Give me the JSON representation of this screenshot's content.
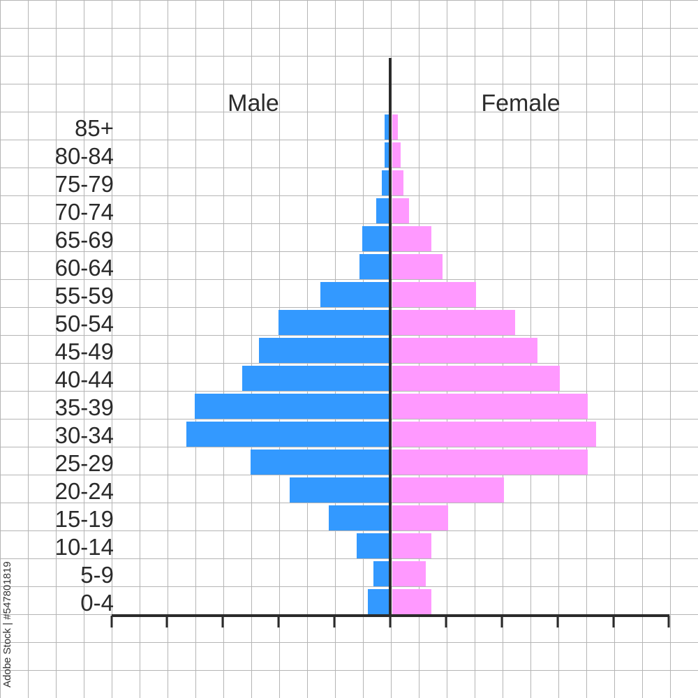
{
  "chart_data": {
    "type": "bar",
    "subtype": "population-pyramid",
    "categories": [
      "85+",
      "80-84",
      "75-79",
      "70-74",
      "65-69",
      "60-64",
      "55-59",
      "50-54",
      "45-49",
      "40-44",
      "35-39",
      "30-34",
      "25-29",
      "20-24",
      "15-19",
      "10-14",
      "5-9",
      "0-4"
    ],
    "series": [
      {
        "name": "Male",
        "color": "#3399ff",
        "values": [
          0.1,
          0.1,
          0.15,
          0.25,
          0.5,
          0.55,
          1.25,
          2.0,
          2.35,
          2.65,
          3.5,
          3.65,
          2.5,
          1.8,
          1.1,
          0.6,
          0.3,
          0.4
        ]
      },
      {
        "name": "Female",
        "color": "#ff99ff",
        "values": [
          0.1,
          0.15,
          0.2,
          0.3,
          0.7,
          0.9,
          1.5,
          2.2,
          2.6,
          3.0,
          3.5,
          3.65,
          3.5,
          2.0,
          1.0,
          0.7,
          0.6,
          0.7
        ]
      }
    ],
    "xlim": [
      -5,
      5
    ],
    "tick_step": 1,
    "tick_labels": false,
    "grid": true,
    "title": "",
    "xlabel": "",
    "ylabel": ""
  },
  "watermark": "Adobe Stock | #547801819"
}
